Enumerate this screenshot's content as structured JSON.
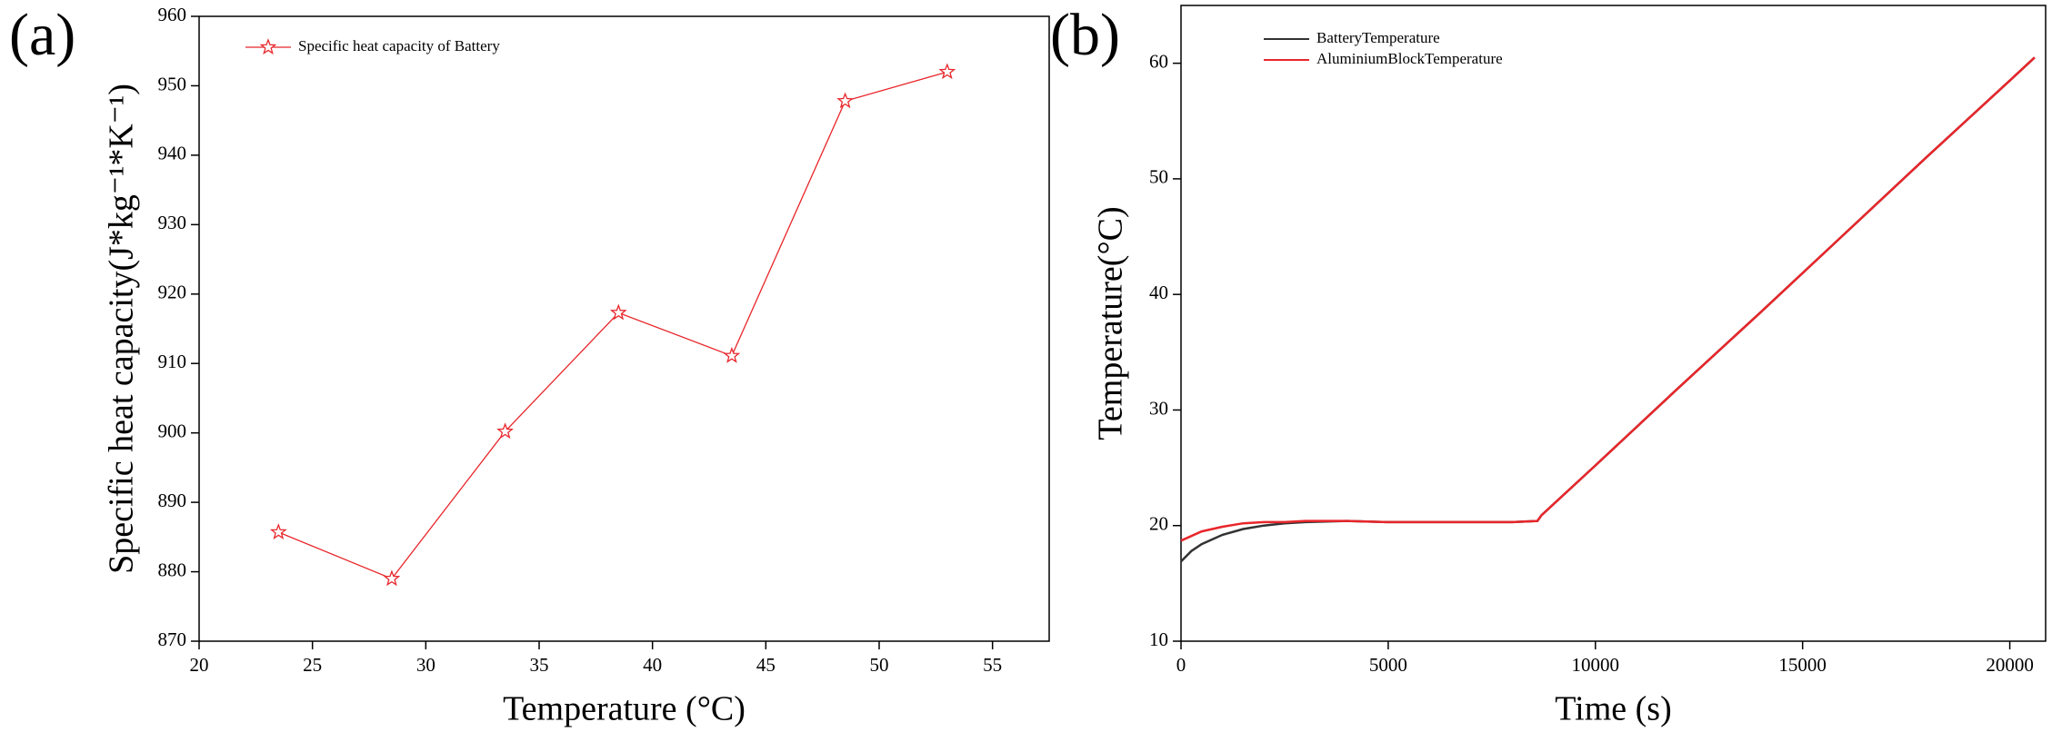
{
  "chart_data": [
    {
      "type": "line",
      "panel": "(a)",
      "x_label": "Temperature (°C)",
      "y_label": "Specific heat capacity(J*kg⁻¹*K⁻¹)",
      "x": [
        23.5,
        28.5,
        33.5,
        38.5,
        43.5,
        48.5,
        53
      ],
      "series": [
        {
          "name": "Specific heat capacity of Battery",
          "color": "#e8262b",
          "marker": "star",
          "values": [
            885.7,
            879,
            900.2,
            917.3,
            911.1,
            947.8,
            952
          ]
        }
      ],
      "xlim": [
        20,
        57.5
      ],
      "xticks": [
        20,
        25,
        30,
        35,
        40,
        45,
        50,
        55
      ],
      "ylim": [
        870,
        960
      ],
      "yticks": [
        870,
        880,
        890,
        900,
        910,
        920,
        930,
        940,
        950,
        960
      ],
      "legend": "top-left"
    },
    {
      "type": "line",
      "panel": "(b)",
      "x_label": "Time (s)",
      "y_label": "Temperature(°C)",
      "x": [
        0,
        250,
        500,
        1000,
        1500,
        2000,
        2500,
        3000,
        4000,
        5000,
        6000,
        7000,
        8000,
        8600,
        8700,
        10000,
        12000,
        14000,
        16000,
        18000,
        20000,
        20600
      ],
      "series": [
        {
          "name": "BatteryTemperature",
          "color": "#333333",
          "values": [
            16.9,
            17.8,
            18.4,
            19.2,
            19.7,
            20.0,
            20.2,
            20.3,
            20.4,
            20.3,
            20.3,
            20.3,
            20.3,
            20.4,
            20.9,
            25.2,
            31.9,
            38.5,
            45.2,
            51.9,
            58.5,
            60.5
          ]
        },
        {
          "name": "AluminiumBlockTemperature",
          "color": "#e8262b",
          "values": [
            18.7,
            19.1,
            19.5,
            19.9,
            20.2,
            20.3,
            20.3,
            20.4,
            20.4,
            20.3,
            20.3,
            20.3,
            20.3,
            20.4,
            20.9,
            25.2,
            31.9,
            38.5,
            45.2,
            51.9,
            58.5,
            60.5
          ]
        }
      ],
      "xlim": [
        0,
        20865
      ],
      "xticks": [
        0,
        5000,
        10000,
        15000,
        20000
      ],
      "ylim": [
        10,
        65
      ],
      "yticks": [
        10,
        20,
        30,
        40,
        50,
        60
      ],
      "legend": "top-left"
    }
  ]
}
